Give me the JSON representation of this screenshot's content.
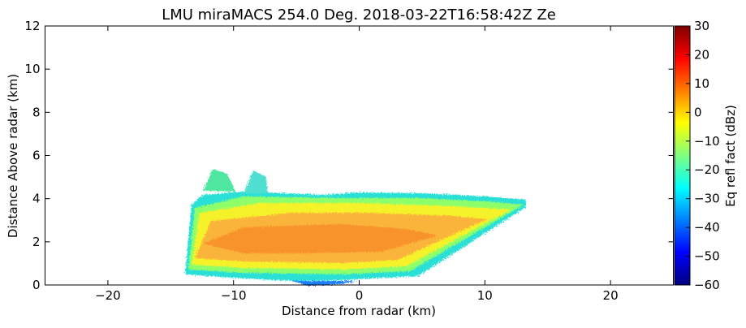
{
  "chart_data": {
    "type": "heatmap",
    "title": "LMU miraMACS 254.0 Deg. 2018-03-22T16:58:42Z  Ze",
    "x_label": "Distance from radar (km)",
    "y_label": "Distance Above radar  (km)",
    "xlim": [
      -25,
      25
    ],
    "xticks": [
      {
        "value": -20,
        "label": "−20"
      },
      {
        "value": -10,
        "label": "−10"
      },
      0,
      10,
      20
    ],
    "ylim": [
      0,
      12
    ],
    "yticks": [
      0,
      2,
      4,
      6,
      8,
      10,
      12
    ],
    "colorbar": {
      "label": "Eq refl fact (dBz)",
      "lim": [
        -60,
        30
      ],
      "ticks": [
        {
          "value": -60,
          "label": "−60"
        },
        {
          "value": -50,
          "label": "−50"
        },
        {
          "value": -40,
          "label": "−40"
        },
        {
          "value": -30,
          "label": "−30"
        },
        {
          "value": -20,
          "label": "−20"
        },
        {
          "value": -10,
          "label": "−10"
        },
        0,
        10,
        20,
        30
      ],
      "colors": [
        "#00007f",
        "#0000ff",
        "#007fff",
        "#00ffff",
        "#7fff7f",
        "#ffff00",
        "#ff7f00",
        "#ff0000",
        "#7f0000"
      ]
    }
  }
}
